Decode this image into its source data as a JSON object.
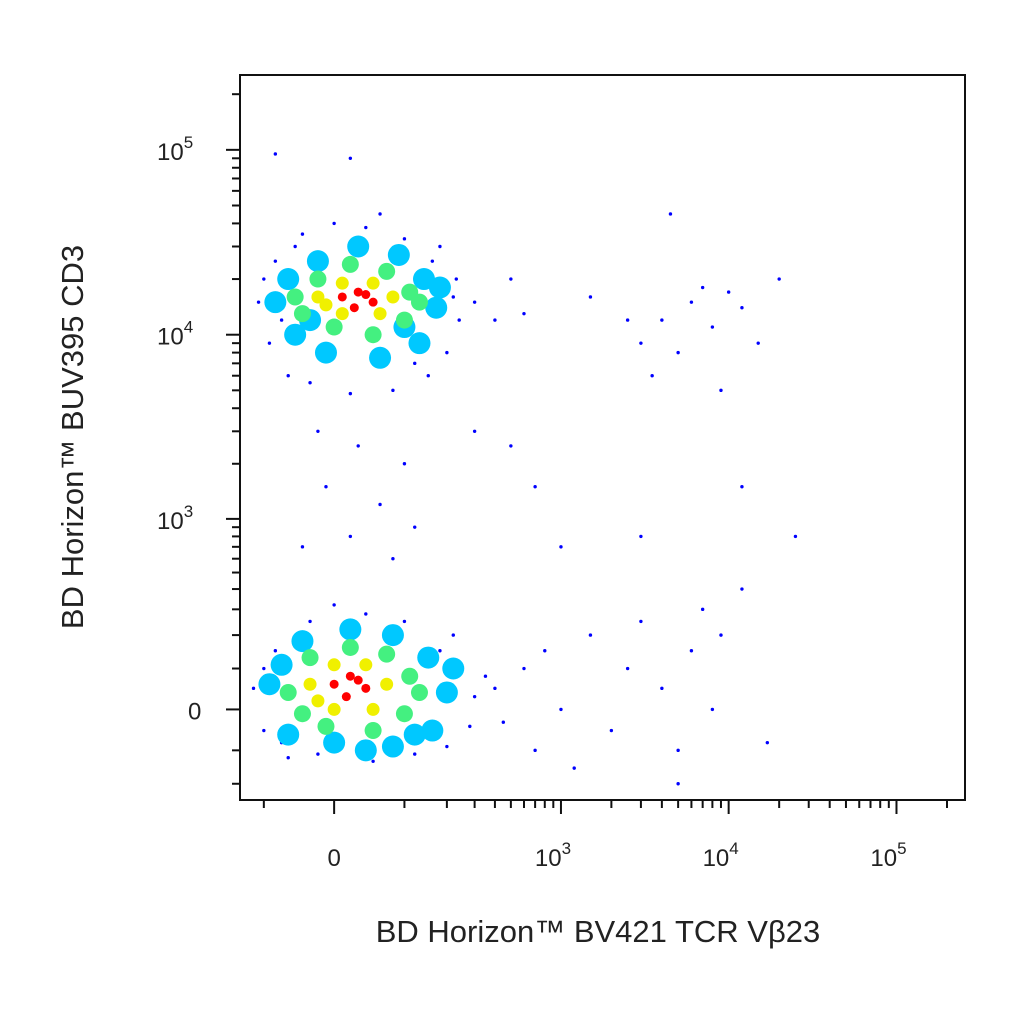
{
  "chart_data": {
    "type": "scatter",
    "x_label": "BD Horizon™ BV421 TCR Vβ23",
    "y_label": "BD Horizon™ BUV395 CD3",
    "xscale": "biexponential",
    "yscale": "biexponential",
    "xlim": [
      -150,
      256000
    ],
    "ylim": [
      -260,
      254000
    ],
    "xticks": [
      0,
      {
        "value": 1000,
        "label": "10",
        "exponent": "3"
      },
      {
        "value": 10000,
        "label": "10",
        "exponent": "4"
      },
      {
        "value": 100000,
        "label": "10",
        "exponent": "5"
      }
    ],
    "yticks": [
      0,
      {
        "value": 1000,
        "label": "10",
        "exponent": "3"
      },
      {
        "value": 10000,
        "label": "10",
        "exponent": "4"
      },
      {
        "value": 100000,
        "label": "10",
        "exponent": "5"
      }
    ],
    "xminor_ticks": [
      -100,
      100,
      200,
      300,
      400,
      500,
      600,
      700,
      800,
      900,
      2000,
      3000,
      4000,
      5000,
      6000,
      7000,
      8000,
      9000,
      20000,
      30000,
      40000,
      50000,
      60000,
      70000,
      80000,
      90000,
      200000
    ],
    "yminor_ticks": [
      -200,
      -100,
      100,
      200,
      300,
      400,
      500,
      600,
      700,
      800,
      900,
      2000,
      3000,
      4000,
      5000,
      6000,
      7000,
      8000,
      9000,
      20000,
      30000,
      40000,
      50000,
      60000,
      70000,
      80000,
      90000,
      200000
    ],
    "series": [
      {
        "color": "#0000ff",
        "x": [
          -110,
          -90,
          -80,
          -60,
          -40,
          0,
          40,
          100,
          160,
          220,
          240,
          200,
          150,
          80,
          20,
          -30,
          -100,
          -70,
          180,
          120,
          -50,
          60,
          230,
          -20,
          30,
          100,
          -10,
          60,
          20,
          120,
          -40,
          80,
          300,
          400,
          500,
          600,
          1500,
          3000,
          4000,
          5000,
          6000,
          8000,
          10000,
          12000,
          15000,
          20000,
          7000,
          3500,
          2500,
          9000,
          4500,
          20,
          -80,
          -120,
          -100,
          -80,
          -60,
          -30,
          0,
          40,
          100,
          180,
          250,
          300,
          280,
          200,
          120,
          50,
          -20,
          -100,
          220,
          -70,
          350,
          400,
          600,
          800,
          1000,
          1500,
          2000,
          2500,
          3000,
          4000,
          5000,
          6000,
          7000,
          8000,
          9000,
          17000,
          5000,
          1200,
          700,
          450,
          300,
          500,
          700,
          1000,
          25000,
          12000,
          3000,
          12000
        ],
        "y": [
          15000,
          9000,
          25000,
          6000,
          35000,
          40000,
          38000,
          33000,
          25000,
          16000,
          12000,
          8000,
          6000,
          5000,
          4800,
          5500,
          20000,
          12000,
          30000,
          7000,
          30000,
          45000,
          20000,
          3000,
          2500,
          2000,
          1500,
          1200,
          800,
          900,
          700,
          600,
          15000,
          12000,
          20000,
          13000,
          16000,
          9000,
          12000,
          8000,
          15000,
          11000,
          17000,
          14000,
          9000,
          20000,
          18000,
          6000,
          12000,
          5000,
          45000,
          90000,
          95000,
          50,
          -50,
          150,
          -120,
          250,
          320,
          280,
          250,
          150,
          100,
          30,
          -40,
          -90,
          -110,
          -130,
          -110,
          100,
          200,
          -80,
          80,
          50,
          100,
          150,
          0,
          200,
          -50,
          100,
          250,
          50,
          -100,
          150,
          300,
          0,
          200,
          -80,
          -200,
          -150,
          -100,
          -30,
          3000,
          2500,
          1500,
          700,
          800,
          1500,
          800,
          400
        ]
      },
      {
        "color": "#00c8ff",
        "x": [
          -80,
          -50,
          -20,
          30,
          90,
          140,
          170,
          130,
          60,
          -10,
          -60,
          180,
          -30,
          100,
          -90,
          -60,
          -40,
          20,
          80,
          150,
          200,
          160,
          80,
          0,
          -70,
          120,
          220,
          40
        ],
        "y": [
          15000,
          10000,
          25000,
          30000,
          27000,
          20000,
          14000,
          9000,
          7500,
          8000,
          20000,
          18000,
          12000,
          11000,
          60,
          -60,
          180,
          220,
          200,
          130,
          40,
          -50,
          -90,
          -80,
          110,
          -60,
          100,
          -100
        ]
      },
      {
        "color": "#44f080",
        "x": [
          -50,
          -20,
          20,
          70,
          110,
          100,
          50,
          0,
          -40,
          130,
          -60,
          -30,
          20,
          70,
          110,
          100,
          50,
          -10,
          -40,
          130
        ],
        "y": [
          16000,
          20000,
          24000,
          22000,
          17000,
          12000,
          10000,
          11000,
          13000,
          15000,
          40,
          130,
          160,
          140,
          80,
          -10,
          -50,
          -40,
          -10,
          40
        ]
      },
      {
        "color": "#f0f000",
        "x": [
          -20,
          10,
          50,
          80,
          60,
          10,
          -10,
          -30,
          0,
          40,
          70,
          50,
          0,
          -20
        ],
        "y": [
          16000,
          19000,
          19000,
          16000,
          13000,
          13000,
          14500,
          60,
          110,
          110,
          60,
          0,
          0,
          20
        ]
      },
      {
        "color": "#ff0000",
        "x": [
          10,
          30,
          50,
          25,
          40,
          0,
          20,
          40,
          15,
          30
        ],
        "y": [
          16000,
          17000,
          15000,
          14000,
          16500,
          60,
          80,
          50,
          30,
          70
        ]
      }
    ]
  }
}
